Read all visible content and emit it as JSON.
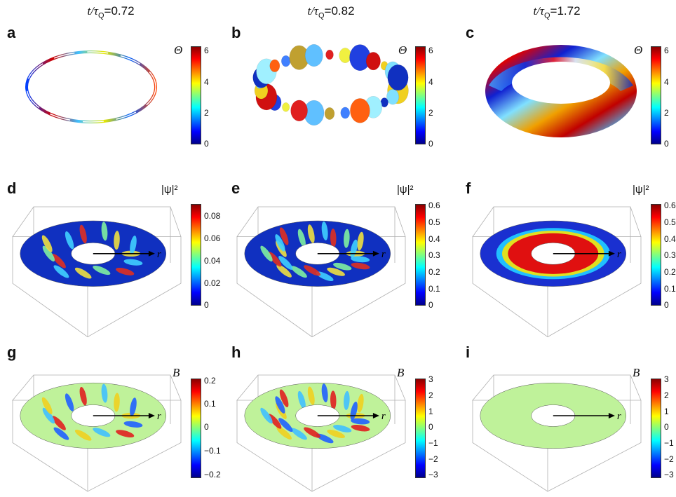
{
  "columns": [
    {
      "title_prefix": "t/τ",
      "title_sub": "Q",
      "title_value": "=0.72"
    },
    {
      "title_prefix": "t/τ",
      "title_sub": "Q",
      "title_value": "=0.82"
    },
    {
      "title_prefix": "t/τ",
      "title_sub": "Q",
      "title_value": "=1.72"
    }
  ],
  "panel_labels": [
    "a",
    "b",
    "c",
    "d",
    "e",
    "f",
    "g",
    "h",
    "i"
  ],
  "colorbar_labels": {
    "theta": "Θ",
    "psi": "|ψ|²",
    "b": "B"
  },
  "axis_label": "r",
  "colorbars": {
    "theta": {
      "ticks": [
        "6",
        "4",
        "2",
        "0"
      ]
    },
    "psi_d": {
      "ticks": [
        "0.08",
        "0.06",
        "0.04",
        "0.02",
        "0"
      ]
    },
    "psi_ef": {
      "ticks": [
        "0.6",
        "0.5",
        "0.4",
        "0.3",
        "0.2",
        "0.1",
        "0"
      ]
    },
    "b_g": {
      "ticks": [
        "0.2",
        "0.1",
        "0",
        "−0.1",
        "−0.2"
      ]
    },
    "b_hi": {
      "ticks": [
        "3",
        "2",
        "1",
        "0",
        "−1",
        "−2",
        "−3"
      ]
    }
  },
  "colors": {
    "jet_red": "#8b0000",
    "jet_blue": "#00008b",
    "field_green": "#bff29a"
  }
}
